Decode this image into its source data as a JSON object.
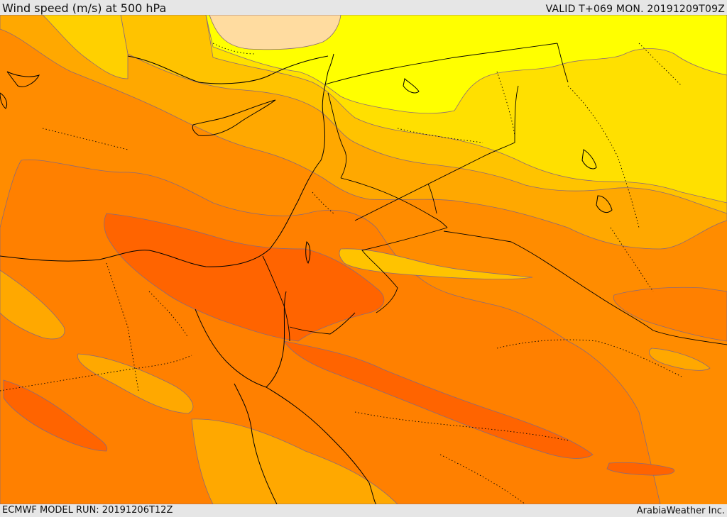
{
  "header": {
    "title": "Wind speed (m/s) at 500 hPa",
    "valid": "VALID T+069 MON. 20191209T09Z"
  },
  "footer": {
    "model_run": "ECMWF MODEL RUN: 20191206T12Z",
    "brand": "ArabiaWeather Inc."
  },
  "map": {
    "field": "wind speed 500 hPa",
    "shading_levels_colors": [
      "#ffdda0",
      "#ffff00",
      "#ffe000",
      "#ffc000",
      "#ffa000",
      "#ff8000",
      "#ff6000"
    ]
  }
}
